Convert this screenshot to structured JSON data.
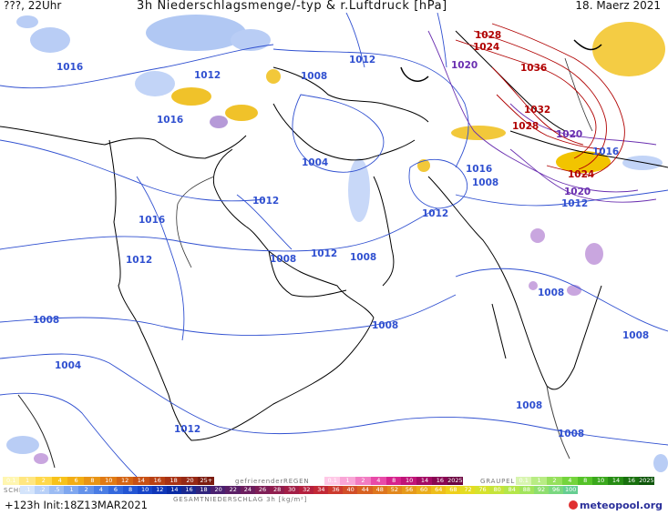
{
  "header": {
    "left": "???, 22Uhr",
    "title": "3h Niederschlagsmenge/-typ & r.Luftdruck [hPa]",
    "date": "18. Maerz 2021"
  },
  "footer": {
    "run": "+123h  Init:18Z13MAR2021",
    "brand": "meteopool.org"
  },
  "legend": {
    "rain_label": "",
    "snow_label": "SCHNEE",
    "freezing_label": "gefrierenderREGEN",
    "graupel_label": "GRAUPEL",
    "total_label": "GESAMTNIEDERSCHLAG 3h [kg/m²]",
    "rain_scale": [
      "0.1",
      "1",
      "2",
      "4",
      "6",
      "8",
      "10",
      "12",
      "14",
      "16",
      "18",
      "20",
      "25+"
    ],
    "snow_scale": [
      ".1",
      ".2",
      ".5",
      "1",
      "2",
      "4",
      "6",
      "8",
      "10",
      "12",
      "14",
      "16",
      "18",
      "20",
      "22",
      "24",
      "26",
      "28",
      "30",
      "32",
      "34",
      "36",
      "40",
      "44",
      "48",
      "52",
      "56",
      "60",
      "64",
      "68",
      "72",
      "76",
      "80",
      "84",
      "88",
      "92",
      "96",
      "100"
    ],
    "freezing_scale": [
      "0.1",
      "1",
      "2",
      "4",
      "8",
      "10",
      "14",
      "16",
      "2025+"
    ],
    "graupel_scale": [
      "0.1",
      "1",
      "2",
      "4",
      "8",
      "10",
      "14",
      "16",
      "2025+"
    ]
  },
  "isobars": {
    "blue_labels": [
      {
        "text": "1016"
      },
      {
        "text": "1012"
      },
      {
        "text": "1016"
      },
      {
        "text": "1012"
      },
      {
        "text": "1008"
      },
      {
        "text": "1004"
      },
      {
        "text": "1012"
      },
      {
        "text": "1016"
      },
      {
        "text": "1012"
      },
      {
        "text": "1008"
      },
      {
        "text": "1012"
      },
      {
        "text": "1008"
      },
      {
        "text": "1016"
      },
      {
        "text": "1008"
      },
      {
        "text": "1012"
      },
      {
        "text": "1008"
      },
      {
        "text": "1008"
      },
      {
        "text": "1004"
      },
      {
        "text": "1012"
      },
      {
        "text": "1008"
      },
      {
        "text": "1008"
      },
      {
        "text": "1016"
      },
      {
        "text": "1012"
      }
    ],
    "purple_labels": [
      {
        "text": "1020"
      },
      {
        "text": "1020"
      },
      {
        "text": "1020"
      }
    ],
    "red_labels": [
      {
        "text": "1028"
      },
      {
        "text": "1024"
      },
      {
        "text": "1036"
      },
      {
        "text": "1032"
      },
      {
        "text": "1028"
      },
      {
        "text": "1024"
      }
    ]
  },
  "colors": {
    "blue": "#3050d0",
    "purple": "#5a2a9a",
    "red": "#b00000",
    "coast": "#000000",
    "rain_yellow": "#f2c400",
    "snow_blue": "#9db9f0"
  }
}
